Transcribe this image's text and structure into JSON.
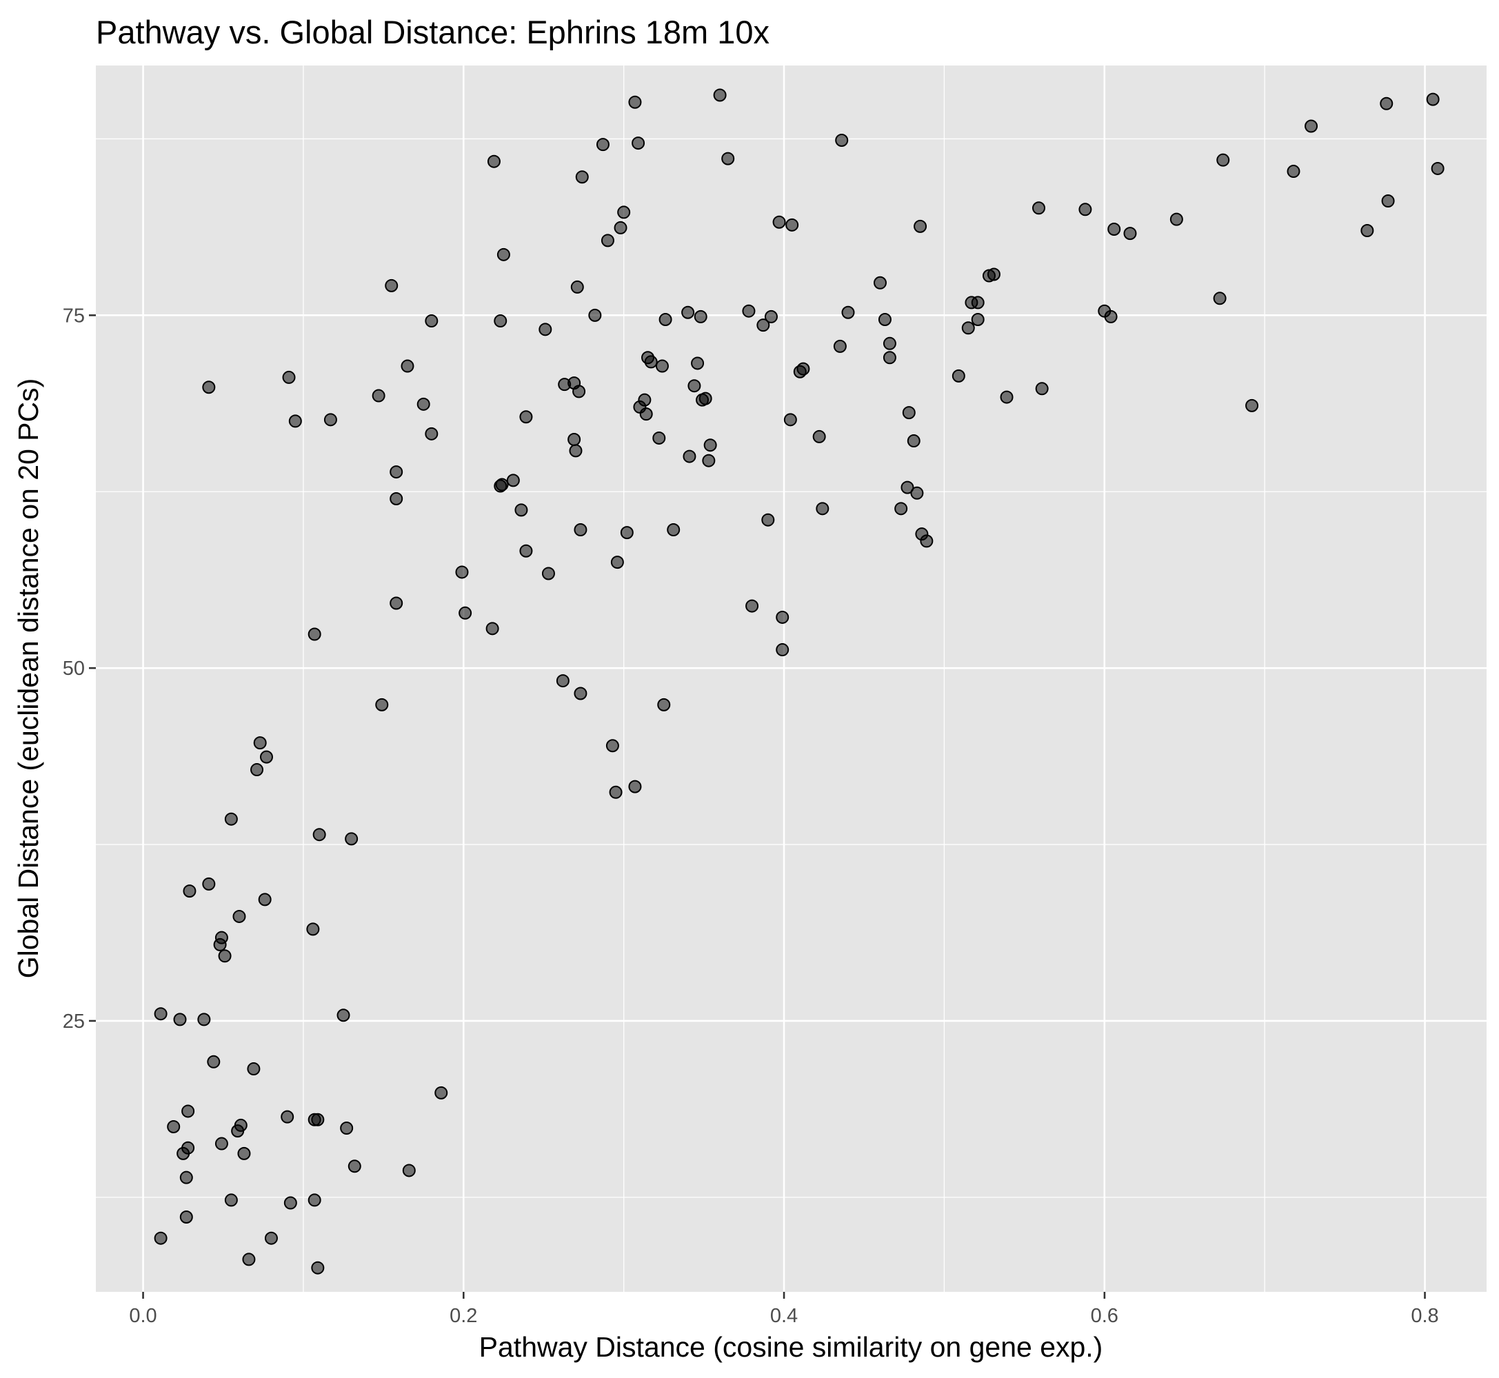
{
  "chart_data": {
    "type": "scatter",
    "title": "Pathway vs. Global Distance: Ephrins 18m 10x",
    "xlabel": "Pathway Distance (cosine similarity on gene exp.)",
    "ylabel": "Global Distance (euclidean distance on 20 PCs)",
    "xlim": [
      -0.0295,
      0.8385
    ],
    "ylim": [
      5.8,
      92.7
    ],
    "x_ticks": [
      0.0,
      0.2,
      0.4,
      0.6,
      0.8
    ],
    "x_tick_labels": [
      "0.0",
      "0.2",
      "0.4",
      "0.6",
      "0.8"
    ],
    "y_ticks": [
      25,
      50,
      75
    ],
    "y_tick_labels": [
      "25",
      "50",
      "75"
    ],
    "x_minor": [
      0.1,
      0.3,
      0.5,
      0.7
    ],
    "y_minor": [
      12.5,
      37.5,
      62.5,
      87.5
    ],
    "grid": true,
    "point_color": "#000000",
    "point_alpha": 0.5,
    "background": "#e5e5e5",
    "points": [
      [
        0.011,
        25.5
      ],
      [
        0.011,
        9.6
      ],
      [
        0.019,
        17.5
      ],
      [
        0.023,
        25.1
      ],
      [
        0.025,
        15.6
      ],
      [
        0.027,
        13.9
      ],
      [
        0.027,
        11.1
      ],
      [
        0.028,
        18.6
      ],
      [
        0.028,
        16.0
      ],
      [
        0.029,
        34.2
      ],
      [
        0.038,
        25.1
      ],
      [
        0.041,
        69.9
      ],
      [
        0.041,
        34.7
      ],
      [
        0.044,
        22.1
      ],
      [
        0.048,
        30.4
      ],
      [
        0.049,
        30.9
      ],
      [
        0.049,
        16.3
      ],
      [
        0.051,
        29.6
      ],
      [
        0.055,
        12.3
      ],
      [
        0.055,
        39.3
      ],
      [
        0.059,
        17.2
      ],
      [
        0.06,
        32.4
      ],
      [
        0.061,
        17.6
      ],
      [
        0.063,
        15.6
      ],
      [
        0.066,
        8.1
      ],
      [
        0.069,
        21.6
      ],
      [
        0.071,
        42.8
      ],
      [
        0.073,
        44.7
      ],
      [
        0.076,
        33.6
      ],
      [
        0.077,
        43.7
      ],
      [
        0.08,
        9.6
      ],
      [
        0.09,
        18.2
      ],
      [
        0.091,
        70.6
      ],
      [
        0.092,
        12.1
      ],
      [
        0.095,
        67.5
      ],
      [
        0.106,
        31.5
      ],
      [
        0.107,
        52.4
      ],
      [
        0.107,
        12.3
      ],
      [
        0.107,
        18.0
      ],
      [
        0.109,
        7.5
      ],
      [
        0.109,
        18.0
      ],
      [
        0.11,
        38.2
      ],
      [
        0.117,
        67.6
      ],
      [
        0.125,
        25.4
      ],
      [
        0.127,
        17.4
      ],
      [
        0.13,
        37.9
      ],
      [
        0.132,
        14.7
      ],
      [
        0.147,
        69.3
      ],
      [
        0.149,
        47.4
      ],
      [
        0.155,
        77.1
      ],
      [
        0.158,
        63.9
      ],
      [
        0.158,
        62.0
      ],
      [
        0.158,
        54.6
      ],
      [
        0.165,
        71.4
      ],
      [
        0.166,
        14.4
      ],
      [
        0.175,
        68.7
      ],
      [
        0.18,
        74.6
      ],
      [
        0.18,
        66.6
      ],
      [
        0.186,
        19.9
      ],
      [
        0.199,
        56.8
      ],
      [
        0.201,
        53.9
      ],
      [
        0.218,
        52.8
      ],
      [
        0.219,
        85.9
      ],
      [
        0.223,
        74.6
      ],
      [
        0.223,
        62.9
      ],
      [
        0.224,
        63.0
      ],
      [
        0.225,
        79.3
      ],
      [
        0.231,
        63.3
      ],
      [
        0.236,
        61.2
      ],
      [
        0.239,
        58.3
      ],
      [
        0.239,
        67.8
      ],
      [
        0.251,
        74.0
      ],
      [
        0.253,
        56.7
      ],
      [
        0.262,
        49.1
      ],
      [
        0.263,
        70.1
      ],
      [
        0.269,
        70.2
      ],
      [
        0.269,
        66.2
      ],
      [
        0.27,
        65.4
      ],
      [
        0.271,
        77.0
      ],
      [
        0.272,
        69.6
      ],
      [
        0.273,
        59.8
      ],
      [
        0.273,
        48.2
      ],
      [
        0.274,
        84.8
      ],
      [
        0.282,
        75.0
      ],
      [
        0.287,
        87.1
      ],
      [
        0.29,
        80.3
      ],
      [
        0.293,
        44.5
      ],
      [
        0.295,
        41.2
      ],
      [
        0.296,
        57.5
      ],
      [
        0.298,
        81.2
      ],
      [
        0.3,
        82.3
      ],
      [
        0.302,
        59.6
      ],
      [
        0.307,
        41.6
      ],
      [
        0.307,
        90.1
      ],
      [
        0.309,
        87.2
      ],
      [
        0.31,
        68.5
      ],
      [
        0.313,
        69.0
      ],
      [
        0.314,
        68.0
      ],
      [
        0.315,
        72.0
      ],
      [
        0.317,
        71.7
      ],
      [
        0.322,
        66.3
      ],
      [
        0.324,
        71.4
      ],
      [
        0.325,
        47.4
      ],
      [
        0.326,
        74.7
      ],
      [
        0.331,
        59.8
      ],
      [
        0.34,
        75.2
      ],
      [
        0.341,
        65.0
      ],
      [
        0.344,
        70.0
      ],
      [
        0.346,
        71.6
      ],
      [
        0.348,
        74.9
      ],
      [
        0.349,
        69.0
      ],
      [
        0.351,
        69.1
      ],
      [
        0.353,
        64.7
      ],
      [
        0.354,
        65.8
      ],
      [
        0.36,
        90.6
      ],
      [
        0.365,
        86.1
      ],
      [
        0.378,
        75.3
      ],
      [
        0.38,
        54.4
      ],
      [
        0.387,
        74.3
      ],
      [
        0.39,
        60.5
      ],
      [
        0.392,
        74.9
      ],
      [
        0.397,
        81.6
      ],
      [
        0.399,
        53.6
      ],
      [
        0.399,
        51.3
      ],
      [
        0.404,
        67.6
      ],
      [
        0.405,
        81.4
      ],
      [
        0.41,
        71.0
      ],
      [
        0.412,
        71.2
      ],
      [
        0.422,
        66.4
      ],
      [
        0.424,
        61.3
      ],
      [
        0.435,
        72.8
      ],
      [
        0.436,
        87.4
      ],
      [
        0.44,
        75.2
      ],
      [
        0.46,
        77.3
      ],
      [
        0.463,
        74.7
      ],
      [
        0.466,
        72.0
      ],
      [
        0.466,
        73.0
      ],
      [
        0.473,
        61.3
      ],
      [
        0.477,
        62.8
      ],
      [
        0.478,
        68.1
      ],
      [
        0.481,
        66.1
      ],
      [
        0.483,
        62.4
      ],
      [
        0.485,
        81.3
      ],
      [
        0.486,
        59.5
      ],
      [
        0.489,
        59.0
      ],
      [
        0.509,
        70.7
      ],
      [
        0.515,
        74.1
      ],
      [
        0.517,
        75.9
      ],
      [
        0.521,
        74.7
      ],
      [
        0.521,
        75.9
      ],
      [
        0.528,
        77.8
      ],
      [
        0.531,
        77.9
      ],
      [
        0.539,
        69.2
      ],
      [
        0.559,
        82.6
      ],
      [
        0.561,
        69.8
      ],
      [
        0.588,
        82.5
      ],
      [
        0.6,
        75.3
      ],
      [
        0.604,
        74.9
      ],
      [
        0.606,
        81.1
      ],
      [
        0.616,
        80.8
      ],
      [
        0.645,
        81.8
      ],
      [
        0.672,
        76.2
      ],
      [
        0.674,
        86.0
      ],
      [
        0.692,
        68.6
      ],
      [
        0.718,
        85.2
      ],
      [
        0.729,
        88.4
      ],
      [
        0.764,
        81.0
      ],
      [
        0.776,
        90.0
      ],
      [
        0.777,
        83.1
      ],
      [
        0.805,
        90.3
      ],
      [
        0.808,
        85.4
      ]
    ]
  }
}
